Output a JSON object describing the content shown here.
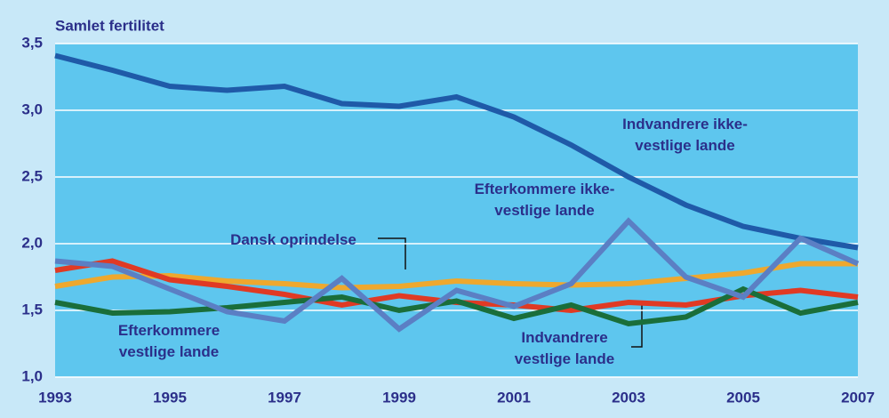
{
  "chart_data": {
    "type": "line",
    "y_label": "Samlet fertilitet",
    "x": [
      1993,
      1994,
      1995,
      1996,
      1997,
      1998,
      1999,
      2000,
      2001,
      2002,
      2003,
      2004,
      2005,
      2006,
      2007
    ],
    "xlim": [
      1993,
      2007
    ],
    "xticks": [
      1993,
      1995,
      1997,
      1999,
      2001,
      2003,
      2005,
      2007
    ],
    "ylim": [
      1.0,
      3.5
    ],
    "yticks": [
      {
        "value": 1.0,
        "label": "1,0"
      },
      {
        "value": 1.5,
        "label": "1,5"
      },
      {
        "value": 2.0,
        "label": "2,0"
      },
      {
        "value": 2.5,
        "label": "2,5"
      },
      {
        "value": 3.0,
        "label": "3,0"
      },
      {
        "value": 3.5,
        "label": "3,5"
      }
    ],
    "grid": true,
    "series": [
      {
        "name": "Indvandrere ikke-vestlige lande",
        "color": "#1f5aa8",
        "values": [
          3.41,
          3.3,
          3.18,
          3.15,
          3.18,
          3.05,
          3.03,
          3.1,
          2.95,
          2.74,
          2.5,
          2.29,
          2.13,
          2.04,
          1.97
        ]
      },
      {
        "name": "Dansk oprindelse",
        "color": "#eea82e",
        "values": [
          1.68,
          1.75,
          1.76,
          1.72,
          1.7,
          1.67,
          1.68,
          1.72,
          1.7,
          1.69,
          1.7,
          1.74,
          1.78,
          1.85,
          1.85
        ]
      },
      {
        "name": "Indvandrere vestlige lande",
        "color": "#e03a24",
        "values": [
          1.8,
          1.87,
          1.73,
          1.68,
          1.62,
          1.54,
          1.61,
          1.56,
          1.54,
          1.5,
          1.56,
          1.54,
          1.61,
          1.65,
          1.6
        ]
      },
      {
        "name": "Efterkommere vestlige lande",
        "color": "#1a6e3a",
        "values": [
          1.56,
          1.48,
          1.49,
          1.52,
          1.56,
          1.6,
          1.5,
          1.57,
          1.44,
          1.54,
          1.4,
          1.45,
          1.66,
          1.48,
          1.56
        ]
      },
      {
        "name": "Efterkommere ikke-vestlige lande",
        "color": "#5b7fc4",
        "values": [
          1.87,
          1.83,
          1.66,
          1.49,
          1.42,
          1.74,
          1.36,
          1.65,
          1.53,
          1.7,
          2.17,
          1.75,
          1.6,
          2.04,
          1.85
        ]
      }
    ]
  }
}
